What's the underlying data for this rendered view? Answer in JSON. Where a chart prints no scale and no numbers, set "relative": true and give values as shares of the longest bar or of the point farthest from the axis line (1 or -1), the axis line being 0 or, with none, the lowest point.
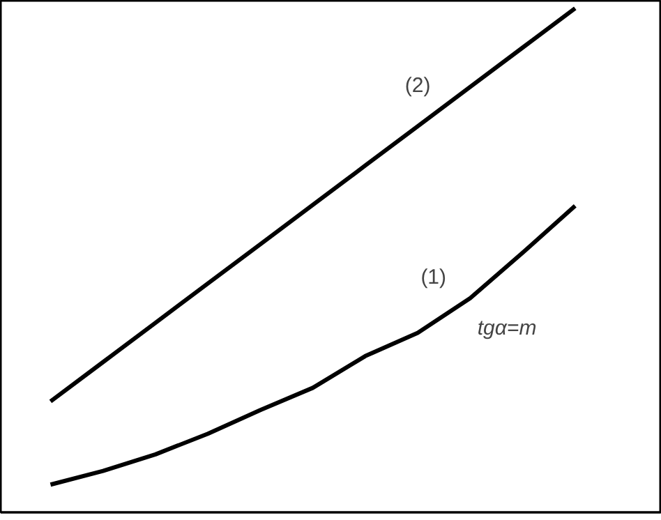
{
  "chart_data": {
    "type": "line",
    "relative": true,
    "categories": [
      null,
      null,
      null,
      null,
      null,
      null,
      null,
      null,
      null,
      null,
      null
    ],
    "series": [
      {
        "name": "(1)",
        "color": "#000000",
        "values": [
          0.055,
          0.082,
          0.115,
          0.156,
          0.203,
          0.247,
          0.31,
          0.356,
          0.425,
          0.515,
          0.608
        ]
      },
      {
        "name": "(2)",
        "color": "#000000",
        "values": [
          0.22,
          0.298,
          0.376,
          0.454,
          0.532,
          0.61,
          0.688,
          0.766,
          0.844,
          0.922,
          1.0
        ]
      }
    ],
    "annotations": [
      "tgα=m"
    ],
    "grid": false
  }
}
